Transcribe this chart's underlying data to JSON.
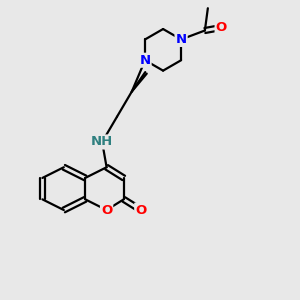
{
  "bg_color": "#e8e8e8",
  "atom_colors": {
    "N": "#0000ff",
    "O": "#ff0000",
    "NH": "#2f8080",
    "C": "#000000"
  },
  "bond_color": "#000000",
  "bond_width": 1.6,
  "font_size_atom": 9.5,
  "fig_size": [
    3.0,
    3.0
  ],
  "dpi": 100
}
